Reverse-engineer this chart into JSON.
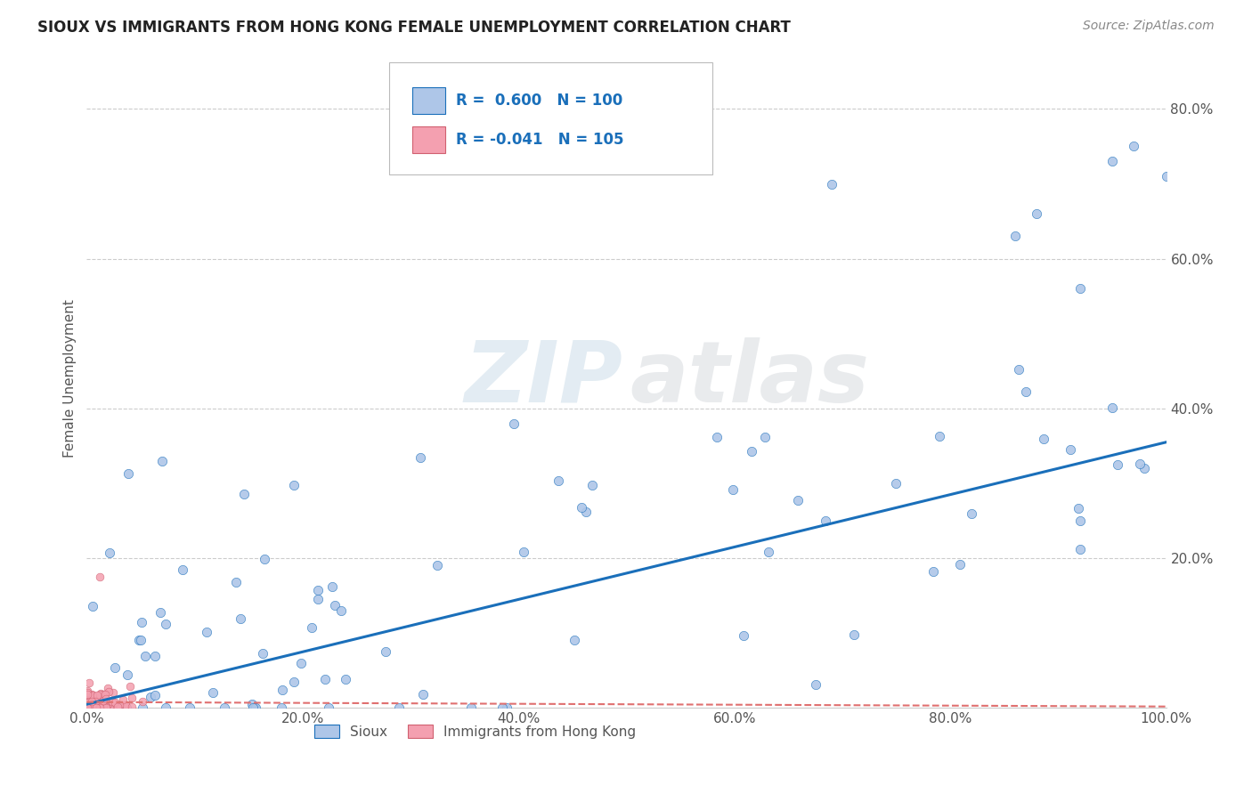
{
  "title": "SIOUX VS IMMIGRANTS FROM HONG KONG FEMALE UNEMPLOYMENT CORRELATION CHART",
  "source": "Source: ZipAtlas.com",
  "ylabel": "Female Unemployment",
  "xlim": [
    0.0,
    1.0
  ],
  "ylim": [
    0.0,
    0.88
  ],
  "xticks": [
    0.0,
    0.2,
    0.4,
    0.6,
    0.8,
    1.0
  ],
  "xticklabels": [
    "0.0%",
    "20.0%",
    "40.0%",
    "60.0%",
    "80.0%",
    "100.0%"
  ],
  "yticks": [
    0.0,
    0.2,
    0.4,
    0.6,
    0.8
  ],
  "yticklabels": [
    "",
    "20.0%",
    "40.0%",
    "60.0%",
    "80.0%"
  ],
  "sioux_R": 0.6,
  "sioux_N": 100,
  "hk_R": -0.041,
  "hk_N": 105,
  "sioux_color": "#aec6e8",
  "hk_color": "#f4a0b0",
  "trend_sioux_color": "#1a6fba",
  "trend_hk_color": "#e07070",
  "title_color": "#222222",
  "text_color": "#555555",
  "grid_color": "#cccccc",
  "legend_text_color": "#1a6fba",
  "sioux_trend_y0": 0.005,
  "sioux_trend_y1": 0.355,
  "hk_trend_y0": 0.008,
  "hk_trend_y1": 0.002
}
